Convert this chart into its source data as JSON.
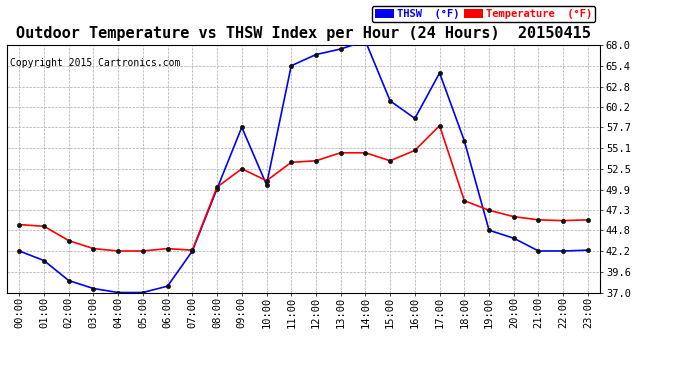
{
  "title": "Outdoor Temperature vs THSW Index per Hour (24 Hours)  20150415",
  "copyright": "Copyright 2015 Cartronics.com",
  "hours": [
    "00:00",
    "01:00",
    "02:00",
    "03:00",
    "04:00",
    "05:00",
    "06:00",
    "07:00",
    "08:00",
    "09:00",
    "10:00",
    "11:00",
    "12:00",
    "13:00",
    "14:00",
    "15:00",
    "16:00",
    "17:00",
    "18:00",
    "19:00",
    "20:00",
    "21:00",
    "22:00",
    "23:00"
  ],
  "thsw": [
    42.2,
    41.0,
    38.5,
    37.5,
    37.0,
    37.0,
    37.8,
    42.2,
    50.0,
    57.7,
    50.5,
    65.4,
    66.8,
    67.5,
    68.5,
    61.0,
    58.8,
    64.5,
    56.0,
    44.8,
    43.8,
    42.2,
    42.2,
    42.3
  ],
  "temperature": [
    45.5,
    45.3,
    43.5,
    42.5,
    42.2,
    42.2,
    42.5,
    42.3,
    50.2,
    52.5,
    51.0,
    53.3,
    53.5,
    54.5,
    54.5,
    53.5,
    54.8,
    57.9,
    48.5,
    47.3,
    46.5,
    46.1,
    46.0,
    46.1
  ],
  "ylim": [
    37.0,
    68.0
  ],
  "yticks": [
    37.0,
    39.6,
    42.2,
    44.8,
    47.3,
    49.9,
    52.5,
    55.1,
    57.7,
    60.2,
    62.8,
    65.4,
    68.0
  ],
  "thsw_color": "#0000ff",
  "temp_color": "#ff0000",
  "background_color": "#ffffff",
  "grid_color": "#aaaaaa",
  "legend_thsw_bg": "#0000ff",
  "legend_temp_bg": "#ff0000",
  "title_fontsize": 11,
  "copyright_fontsize": 7,
  "tick_fontsize": 7.5
}
